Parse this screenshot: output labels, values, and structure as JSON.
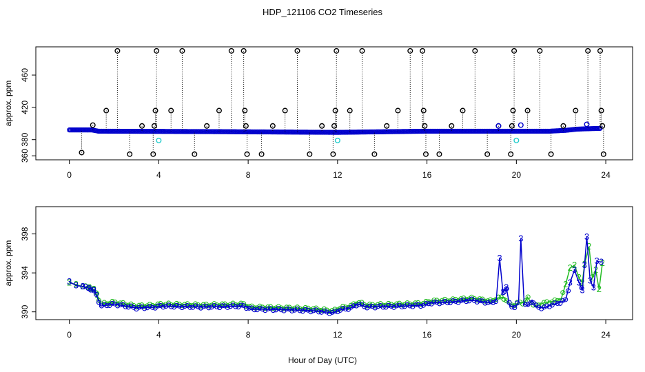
{
  "title": "HDP_121106  CO2 Timeseries",
  "xlabel": "Hour of Day (UTC)",
  "colors": {
    "black": "#000000",
    "blue": "#0000cc",
    "green": "#22bb22",
    "cyan": "#22cccc"
  },
  "chart_data": [
    {
      "type": "scatter",
      "name": "top-panel",
      "ylabel": "approx. ppm",
      "xlim": [
        -1.5,
        25.2
      ],
      "ylim": [
        355,
        495
      ],
      "xticks": [
        0,
        4,
        8,
        12,
        16,
        20,
        24
      ],
      "xtick_labels": [
        "0",
        "4",
        "8",
        "12",
        "16",
        "20",
        "24"
      ],
      "yticks": [
        360,
        380,
        420,
        460
      ],
      "ytick_labels": [
        "360",
        "380",
        "420",
        "460"
      ],
      "baseline": [
        [
          0,
          392
        ],
        [
          1.0,
          392
        ],
        [
          1.3,
          390.5
        ],
        [
          6,
          390
        ],
        [
          12,
          389
        ],
        [
          16,
          390.5
        ],
        [
          18.5,
          390.5
        ],
        [
          21.5,
          390.5
        ],
        [
          22.2,
          391.5
        ],
        [
          22.7,
          393
        ],
        [
          23.2,
          393.5
        ],
        [
          23.8,
          394
        ]
      ],
      "outliers": [
        {
          "x": 0.55,
          "y": 364
        },
        {
          "x": 1.05,
          "y": 398
        },
        {
          "x": 1.65,
          "y": 416
        },
        {
          "x": 2.15,
          "y": 490
        },
        {
          "x": 2.7,
          "y": 362
        },
        {
          "x": 3.25,
          "y": 397
        },
        {
          "x": 3.75,
          "y": 362
        },
        {
          "x": 3.8,
          "y": 397
        },
        {
          "x": 3.85,
          "y": 416
        },
        {
          "x": 3.9,
          "y": 490
        },
        {
          "x": 4.55,
          "y": 416
        },
        {
          "x": 5.05,
          "y": 490
        },
        {
          "x": 5.6,
          "y": 362
        },
        {
          "x": 6.15,
          "y": 397
        },
        {
          "x": 6.7,
          "y": 416
        },
        {
          "x": 7.25,
          "y": 490
        },
        {
          "x": 7.8,
          "y": 490
        },
        {
          "x": 7.85,
          "y": 416
        },
        {
          "x": 7.9,
          "y": 397
        },
        {
          "x": 7.95,
          "y": 362
        },
        {
          "x": 8.6,
          "y": 362
        },
        {
          "x": 9.1,
          "y": 397
        },
        {
          "x": 9.65,
          "y": 416
        },
        {
          "x": 10.2,
          "y": 490
        },
        {
          "x": 10.75,
          "y": 362
        },
        {
          "x": 11.3,
          "y": 397
        },
        {
          "x": 11.8,
          "y": 362
        },
        {
          "x": 11.85,
          "y": 397
        },
        {
          "x": 11.9,
          "y": 416
        },
        {
          "x": 11.95,
          "y": 490
        },
        {
          "x": 12.55,
          "y": 416
        },
        {
          "x": 13.1,
          "y": 490
        },
        {
          "x": 13.65,
          "y": 362
        },
        {
          "x": 14.2,
          "y": 397
        },
        {
          "x": 14.7,
          "y": 416
        },
        {
          "x": 15.25,
          "y": 490
        },
        {
          "x": 15.8,
          "y": 490
        },
        {
          "x": 15.85,
          "y": 416
        },
        {
          "x": 15.9,
          "y": 397
        },
        {
          "x": 15.95,
          "y": 362
        },
        {
          "x": 16.55,
          "y": 362
        },
        {
          "x": 17.1,
          "y": 397
        },
        {
          "x": 17.6,
          "y": 416
        },
        {
          "x": 18.15,
          "y": 490
        },
        {
          "x": 18.7,
          "y": 362
        },
        {
          "x": 19.2,
          "y": 397
        },
        {
          "x": 19.75,
          "y": 362
        },
        {
          "x": 19.8,
          "y": 397
        },
        {
          "x": 19.85,
          "y": 416
        },
        {
          "x": 19.9,
          "y": 490
        },
        {
          "x": 20.5,
          "y": 416
        },
        {
          "x": 21.05,
          "y": 490
        },
        {
          "x": 21.55,
          "y": 362
        },
        {
          "x": 22.1,
          "y": 397
        },
        {
          "x": 22.65,
          "y": 416
        },
        {
          "x": 23.2,
          "y": 490
        },
        {
          "x": 23.75,
          "y": 490
        },
        {
          "x": 23.8,
          "y": 416
        },
        {
          "x": 23.85,
          "y": 397
        },
        {
          "x": 23.9,
          "y": 362
        }
      ],
      "blue_points": [
        {
          "x": 19.2,
          "y": 397
        },
        {
          "x": 20.2,
          "y": 398
        },
        {
          "x": 23.15,
          "y": 399
        }
      ],
      "cyan_points": [
        {
          "x": 4.0,
          "y": 379
        },
        {
          "x": 12.0,
          "y": 379
        },
        {
          "x": 20.0,
          "y": 379
        }
      ]
    },
    {
      "type": "line",
      "name": "bottom-panel",
      "ylabel": "approx. ppm",
      "xlim": [
        -1.5,
        25.2
      ],
      "ylim": [
        389.2,
        400.8
      ],
      "xticks": [
        0,
        4,
        8,
        12,
        16,
        20,
        24
      ],
      "xtick_labels": [
        "0",
        "4",
        "8",
        "12",
        "16",
        "20",
        "24"
      ],
      "yticks": [
        390,
        394,
        398
      ],
      "ytick_labels": [
        "390",
        "394",
        "398"
      ],
      "series": [
        {
          "name": "blue",
          "marker": "3",
          "x": [
            0,
            0.3,
            0.6,
            0.9,
            1.1,
            1.25,
            1.4,
            2.0,
            3.0,
            3.9,
            4.1,
            6.0,
            7.8,
            8.1,
            10.0,
            11.0,
            11.8,
            12.1,
            12.6,
            12.9,
            13.3,
            15.0,
            15.9,
            16.1,
            17.0,
            18.0,
            18.9,
            19.1,
            19.25,
            19.4,
            19.55,
            19.7,
            19.95,
            20.1,
            20.2,
            20.35,
            20.5,
            20.7,
            20.9,
            21.2,
            21.7,
            22.0,
            22.2,
            22.4,
            22.6,
            22.8,
            22.95,
            23.05,
            23.15,
            23.3,
            23.45,
            23.6,
            23.8
          ],
          "y": [
            393.1,
            392.7,
            392.6,
            392.4,
            392.2,
            391.5,
            390.6,
            390.8,
            390.4,
            390.5,
            390.6,
            390.5,
            390.6,
            390.3,
            390.2,
            390.1,
            389.9,
            390.2,
            390.4,
            390.8,
            390.5,
            390.6,
            390.7,
            390.9,
            391.0,
            391.2,
            390.9,
            391.2,
            395.5,
            392.0,
            392.5,
            390.6,
            390.5,
            391.0,
            397.5,
            390.8,
            390.6,
            391.2,
            390.5,
            390.4,
            390.8,
            391.0,
            391.2,
            393.0,
            394.3,
            393.0,
            392.2,
            394.8,
            397.7,
            393.2,
            392.5,
            395.2,
            395.1
          ]
        },
        {
          "name": "green",
          "marker": "2",
          "x": [
            0,
            0.3,
            0.6,
            0.9,
            1.1,
            1.25,
            1.4,
            2.0,
            3.0,
            3.9,
            4.1,
            6.0,
            7.8,
            8.1,
            10.0,
            11.0,
            11.8,
            12.1,
            12.6,
            12.9,
            13.3,
            15.0,
            15.9,
            16.1,
            17.0,
            18.0,
            18.9,
            19.1,
            19.4,
            19.7,
            19.95,
            20.1,
            20.35,
            20.5,
            20.7,
            20.9,
            21.2,
            21.7,
            22.0,
            22.2,
            22.4,
            22.6,
            22.8,
            22.95,
            23.05,
            23.25,
            23.4,
            23.55,
            23.7,
            23.85
          ],
          "y": [
            393.0,
            392.8,
            392.6,
            392.5,
            392.3,
            391.7,
            390.8,
            391.0,
            390.6,
            390.7,
            390.8,
            390.7,
            390.8,
            390.5,
            390.4,
            390.3,
            390.1,
            390.4,
            390.6,
            391.0,
            390.7,
            390.8,
            390.9,
            391.1,
            391.2,
            391.4,
            391.1,
            391.4,
            391.5,
            390.8,
            390.7,
            391.0,
            390.9,
            391.5,
            390.8,
            390.6,
            390.9,
            391.1,
            391.3,
            392.8,
            394.5,
            394.8,
            393.5,
            393.0,
            394.9,
            396.7,
            393.5,
            394.3,
            392.3,
            395.0
          ]
        }
      ]
    }
  ]
}
